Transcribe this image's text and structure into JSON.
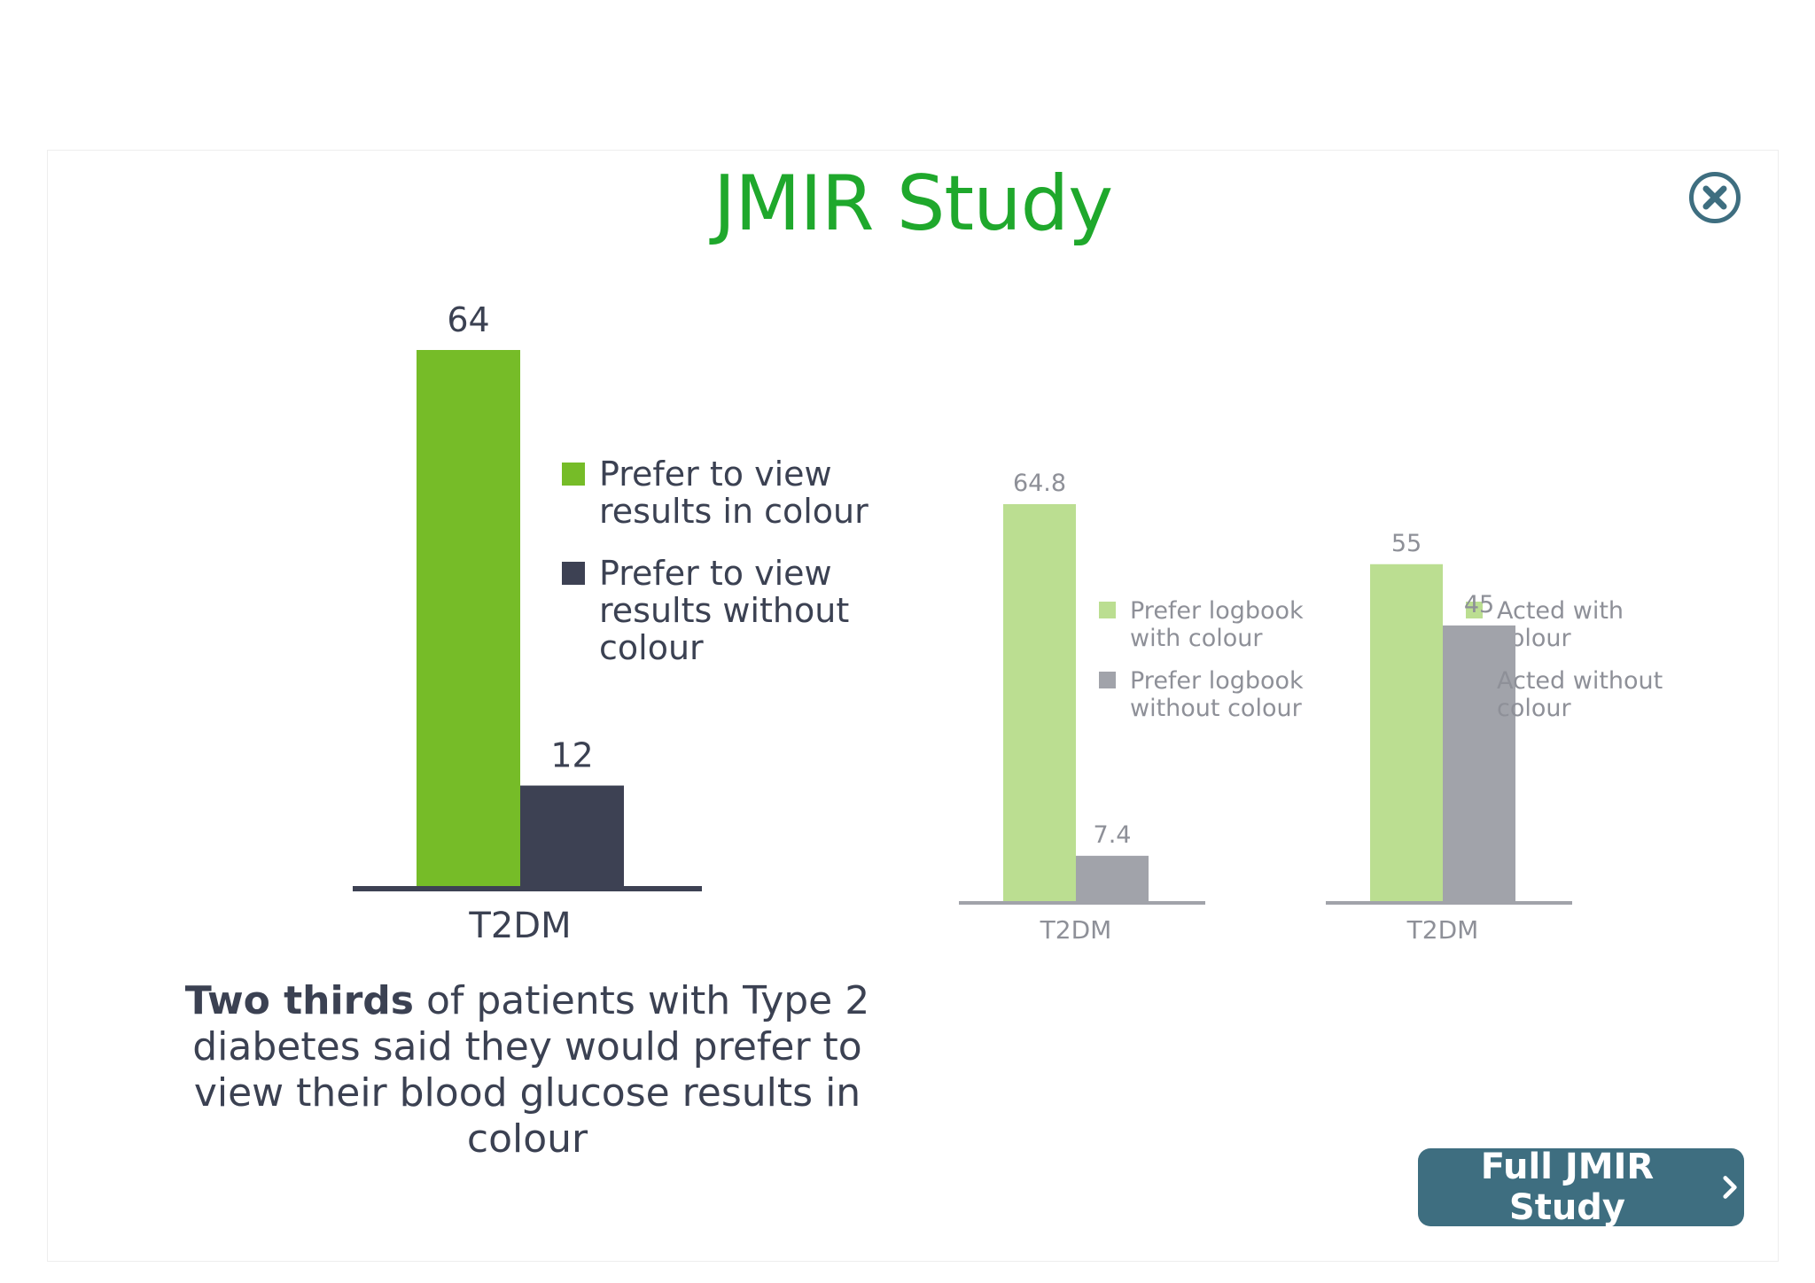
{
  "modal": {
    "title": "JMIR Study",
    "close_icon": "close-icon",
    "caption_bold": "Two thirds",
    "caption_rest": " of patients with Type 2 diabetes said they would prefer to view their blood glucose results in colour",
    "cta_label": "Full JMIR Study",
    "cta_icon": "chevron-right-icon"
  },
  "chart_data": [
    {
      "type": "bar",
      "categories": [
        "T2DM"
      ],
      "series": [
        {
          "name": "Prefer to view results in colour",
          "values": [
            64
          ],
          "color": "#76bc28"
        },
        {
          "name": "Prefer to view results without colour",
          "values": [
            12
          ],
          "color": "#3d4153"
        }
      ],
      "ylim": [
        0,
        64
      ],
      "legend": "right"
    },
    {
      "type": "bar",
      "categories": [
        "T2DM"
      ],
      "series": [
        {
          "name": "Prefer logbook with colour",
          "values": [
            64.8
          ],
          "color": "#bbde91"
        },
        {
          "name": "Prefer logbook without colour",
          "values": [
            7.4
          ],
          "color": "#a1a3aa"
        }
      ],
      "ylim": [
        0,
        64.8
      ],
      "legend": "right"
    },
    {
      "type": "bar",
      "categories": [
        "T2DM"
      ],
      "series": [
        {
          "name": "Acted with colour",
          "values": [
            55
          ],
          "color": "#bbde91"
        },
        {
          "name": "Acted without colour",
          "values": [
            45
          ],
          "color": "#a1a3aa"
        }
      ],
      "ylim": [
        0,
        64.8
      ],
      "legend": "right"
    }
  ]
}
